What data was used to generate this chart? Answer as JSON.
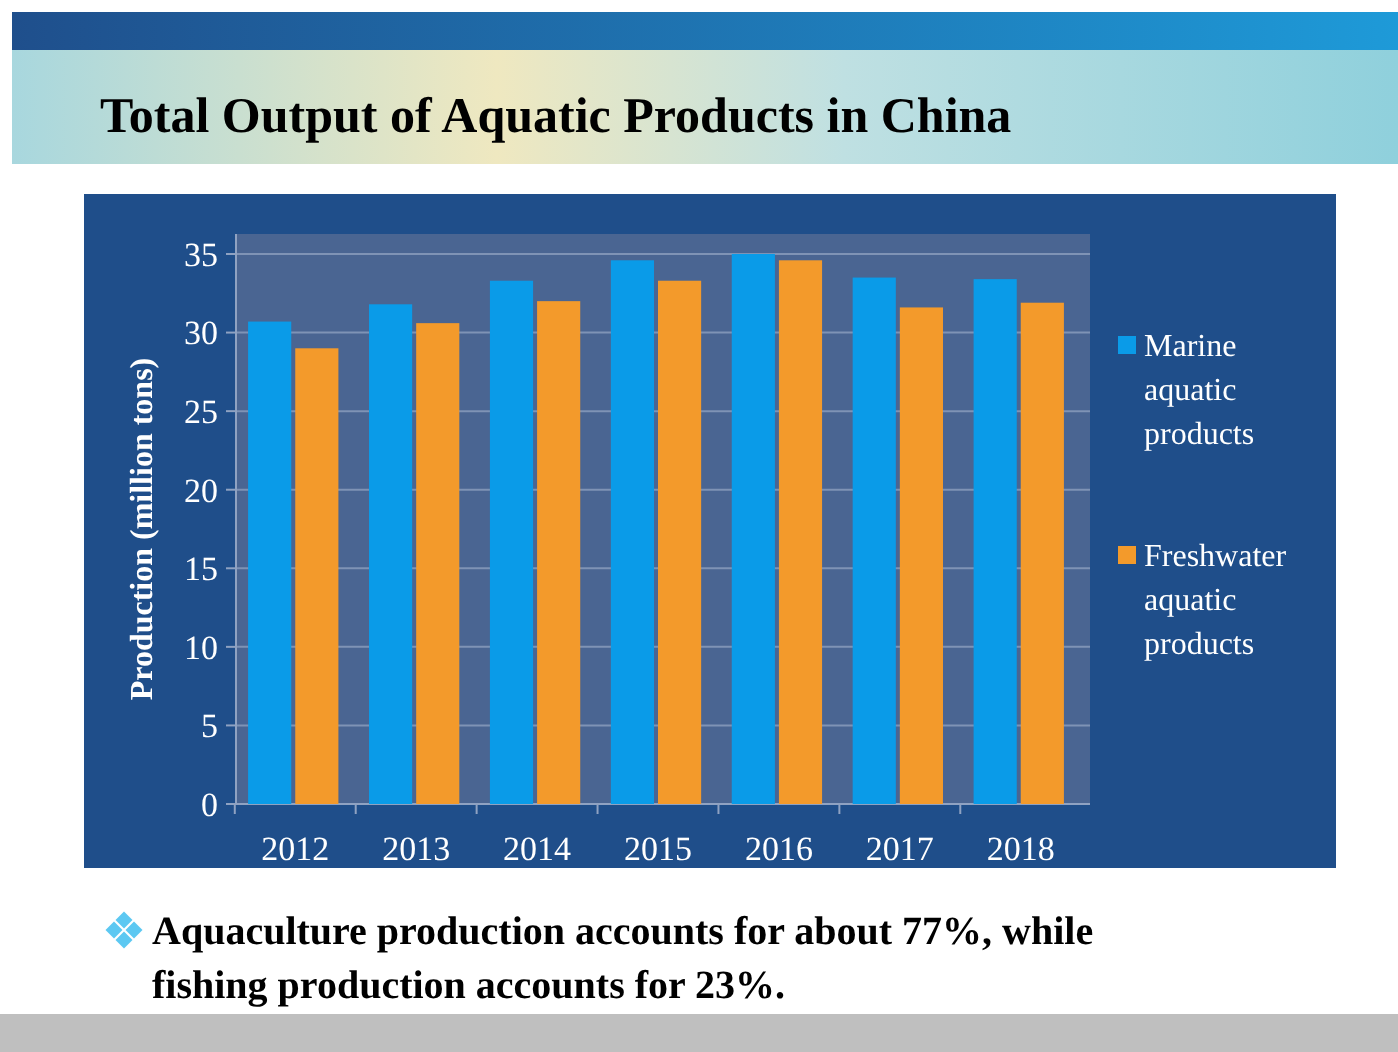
{
  "chart_data": {
    "type": "bar",
    "title": "Total Output of Aquatic Products in China",
    "ylabel": "Production (million tons)",
    "categories": [
      "2012",
      "2013",
      "2014",
      "2015",
      "2016",
      "2017",
      "2018"
    ],
    "series": [
      {
        "name": "Marine aquatic products",
        "color": "#0a9be8",
        "values": [
          30.7,
          31.8,
          33.3,
          34.6,
          35.0,
          33.5,
          33.4
        ]
      },
      {
        "name": "Freshwater aquatic products",
        "color": "#f39a2b",
        "values": [
          29.0,
          30.6,
          32.0,
          33.3,
          34.6,
          31.6,
          31.9
        ]
      }
    ],
    "ylim": [
      0,
      35
    ],
    "yticks": [
      0,
      5,
      10,
      15,
      20,
      25,
      30,
      35
    ],
    "grid": "y",
    "legend": "right",
    "annotations": [
      "Aquaculture production accounts for about 77%, while fishing production accounts for 23%."
    ]
  }
}
